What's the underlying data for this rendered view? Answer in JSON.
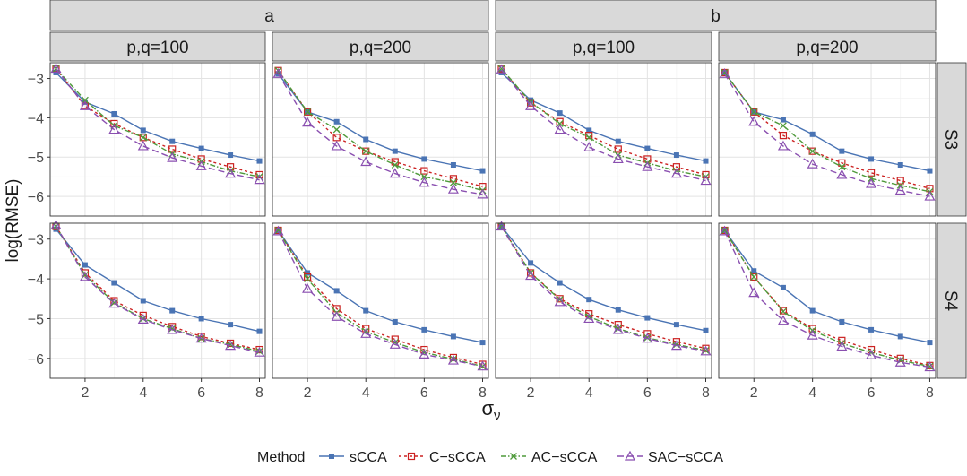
{
  "chart_data": {
    "type": "line",
    "x": [
      1,
      2,
      3,
      4,
      5,
      6,
      7,
      8
    ],
    "xticks": [
      2,
      4,
      6,
      8
    ],
    "xlim": [
      0.8,
      8.2
    ],
    "yticks": [
      -3,
      -4,
      -5,
      -6
    ],
    "ylim": [
      -6.5,
      -2.6
    ],
    "xlabel": "σ",
    "xlabel_sub": "ν",
    "ylabel": "log(RMSE)",
    "top_strips": [
      "a",
      "b"
    ],
    "sub_strips": [
      "p,q=100",
      "p,q=200",
      "p,q=100",
      "p,q=200"
    ],
    "row_strips": [
      "S3",
      "S4"
    ],
    "legend": {
      "title": "Method",
      "position": "bottom",
      "entries": [
        "sCCA",
        "C−sCCA",
        "AC−sCCA",
        "SAC−sCCA"
      ]
    },
    "series_style": [
      {
        "name": "sCCA",
        "color": "#4a74b4",
        "dash": "none",
        "marker": "square"
      },
      {
        "name": "C−sCCA",
        "color": "#cc2222",
        "dash": "3,3",
        "marker": "open-square"
      },
      {
        "name": "AC−sCCA",
        "color": "#4e9a3a",
        "dash": "6,2,1.5,2",
        "marker": "cross"
      },
      {
        "name": "SAC−sCCA",
        "color": "#8a4fb0",
        "dash": "7,4",
        "marker": "open-triangle"
      }
    ],
    "panels": [
      {
        "top": "a",
        "sub": "p,q=100",
        "row": "S3",
        "series": [
          {
            "name": "sCCA",
            "values": [
              -2.85,
              -3.6,
              -3.9,
              -4.32,
              -4.6,
              -4.78,
              -4.95,
              -5.1
            ]
          },
          {
            "name": "C−sCCA",
            "values": [
              -2.75,
              -3.7,
              -4.15,
              -4.5,
              -4.8,
              -5.05,
              -5.25,
              -5.45
            ]
          },
          {
            "name": "AC−sCCA",
            "values": [
              -2.75,
              -3.55,
              -4.2,
              -4.5,
              -4.92,
              -5.12,
              -5.35,
              -5.5
            ]
          },
          {
            "name": "SAC−sCCA",
            "values": [
              -2.75,
              -3.7,
              -4.3,
              -4.72,
              -5.02,
              -5.23,
              -5.42,
              -5.58
            ]
          }
        ]
      },
      {
        "top": "a",
        "sub": "p,q=200",
        "row": "S3",
        "series": [
          {
            "name": "sCCA",
            "values": [
              -2.88,
              -3.85,
              -4.1,
              -4.55,
              -4.85,
              -5.05,
              -5.2,
              -5.35
            ]
          },
          {
            "name": "C−sCCA",
            "values": [
              -2.8,
              -3.85,
              -4.5,
              -4.85,
              -5.12,
              -5.35,
              -5.55,
              -5.75
            ]
          },
          {
            "name": "AC−sCCA",
            "values": [
              -2.8,
              -3.85,
              -4.3,
              -4.85,
              -5.2,
              -5.5,
              -5.65,
              -5.85
            ]
          },
          {
            "name": "SAC−sCCA",
            "values": [
              -2.88,
              -4.12,
              -4.72,
              -5.12,
              -5.42,
              -5.65,
              -5.82,
              -5.95
            ]
          }
        ]
      },
      {
        "top": "b",
        "sub": "p,q=100",
        "row": "S3",
        "series": [
          {
            "name": "sCCA",
            "values": [
              -2.85,
              -3.55,
              -3.88,
              -4.32,
              -4.6,
              -4.78,
              -4.95,
              -5.1
            ]
          },
          {
            "name": "C−sCCA",
            "values": [
              -2.75,
              -3.62,
              -4.1,
              -4.45,
              -4.8,
              -5.05,
              -5.25,
              -5.45
            ]
          },
          {
            "name": "AC−sCCA",
            "values": [
              -2.75,
              -3.6,
              -4.15,
              -4.5,
              -4.95,
              -5.15,
              -5.35,
              -5.5
            ]
          },
          {
            "name": "SAC−sCCA",
            "values": [
              -2.78,
              -3.7,
              -4.3,
              -4.75,
              -5.05,
              -5.25,
              -5.42,
              -5.6
            ]
          }
        ]
      },
      {
        "top": "b",
        "sub": "p,q=200",
        "row": "S3",
        "series": [
          {
            "name": "sCCA",
            "values": [
              -2.85,
              -3.85,
              -4.05,
              -4.42,
              -4.85,
              -5.05,
              -5.2,
              -5.35
            ]
          },
          {
            "name": "C−sCCA",
            "values": [
              -2.85,
              -3.85,
              -4.45,
              -4.85,
              -5.15,
              -5.4,
              -5.6,
              -5.8
            ]
          },
          {
            "name": "AC−sCCA",
            "values": [
              -2.85,
              -3.85,
              -4.2,
              -4.85,
              -5.25,
              -5.55,
              -5.72,
              -5.88
            ]
          },
          {
            "name": "SAC−sCCA",
            "values": [
              -2.88,
              -4.1,
              -4.72,
              -5.18,
              -5.45,
              -5.68,
              -5.85,
              -6.0
            ]
          }
        ]
      },
      {
        "top": "a",
        "sub": "p,q=100",
        "row": "S4",
        "series": [
          {
            "name": "sCCA",
            "values": [
              -2.75,
              -3.65,
              -4.1,
              -4.55,
              -4.8,
              -5.0,
              -5.15,
              -5.32
            ]
          },
          {
            "name": "C−sCCA",
            "values": [
              -2.68,
              -3.85,
              -4.55,
              -4.92,
              -5.2,
              -5.45,
              -5.62,
              -5.78
            ]
          },
          {
            "name": "AC−sCCA",
            "values": [
              -2.68,
              -3.9,
              -4.6,
              -5.0,
              -5.25,
              -5.5,
              -5.65,
              -5.82
            ]
          },
          {
            "name": "SAC−sCCA",
            "values": [
              -2.65,
              -3.95,
              -4.62,
              -5.02,
              -5.28,
              -5.5,
              -5.68,
              -5.85
            ]
          }
        ]
      },
      {
        "top": "a",
        "sub": "p,q=200",
        "row": "S4",
        "series": [
          {
            "name": "sCCA",
            "values": [
              -2.78,
              -3.85,
              -4.3,
              -4.8,
              -5.08,
              -5.28,
              -5.45,
              -5.6
            ]
          },
          {
            "name": "C−sCCA",
            "values": [
              -2.78,
              -3.95,
              -4.75,
              -5.25,
              -5.52,
              -5.78,
              -5.98,
              -6.15
            ]
          },
          {
            "name": "AC−sCCA",
            "values": [
              -2.78,
              -4.0,
              -4.85,
              -5.32,
              -5.6,
              -5.85,
              -6.02,
              -6.2
            ]
          },
          {
            "name": "SAC−sCCA",
            "values": [
              -2.8,
              -4.25,
              -4.95,
              -5.38,
              -5.65,
              -5.9,
              -6.05,
              -6.2
            ]
          }
        ]
      },
      {
        "top": "b",
        "sub": "p,q=100",
        "row": "S4",
        "series": [
          {
            "name": "sCCA",
            "values": [
              -2.68,
              -3.6,
              -4.1,
              -4.52,
              -4.78,
              -4.98,
              -5.15,
              -5.3
            ]
          },
          {
            "name": "C−sCCA",
            "values": [
              -2.68,
              -3.85,
              -4.5,
              -4.88,
              -5.15,
              -5.38,
              -5.58,
              -5.75
            ]
          },
          {
            "name": "AC−sCCA",
            "values": [
              -2.68,
              -3.85,
              -4.52,
              -4.95,
              -5.25,
              -5.48,
              -5.65,
              -5.8
            ]
          },
          {
            "name": "SAC−sCCA",
            "values": [
              -2.68,
              -3.92,
              -4.58,
              -5.0,
              -5.28,
              -5.5,
              -5.68,
              -5.82
            ]
          }
        ]
      },
      {
        "top": "b",
        "sub": "p,q=200",
        "row": "S4",
        "series": [
          {
            "name": "sCCA",
            "values": [
              -2.78,
              -3.8,
              -4.22,
              -4.8,
              -5.08,
              -5.28,
              -5.45,
              -5.6
            ]
          },
          {
            "name": "C−sCCA",
            "values": [
              -2.78,
              -3.95,
              -4.8,
              -5.25,
              -5.55,
              -5.78,
              -6.0,
              -6.18
            ]
          },
          {
            "name": "AC−sCCA",
            "values": [
              -2.78,
              -3.95,
              -4.82,
              -5.3,
              -5.62,
              -5.85,
              -6.05,
              -6.2
            ]
          },
          {
            "name": "SAC−sCCA",
            "values": [
              -2.8,
              -4.35,
              -5.05,
              -5.42,
              -5.7,
              -5.92,
              -6.1,
              -6.22
            ]
          }
        ]
      }
    ]
  }
}
